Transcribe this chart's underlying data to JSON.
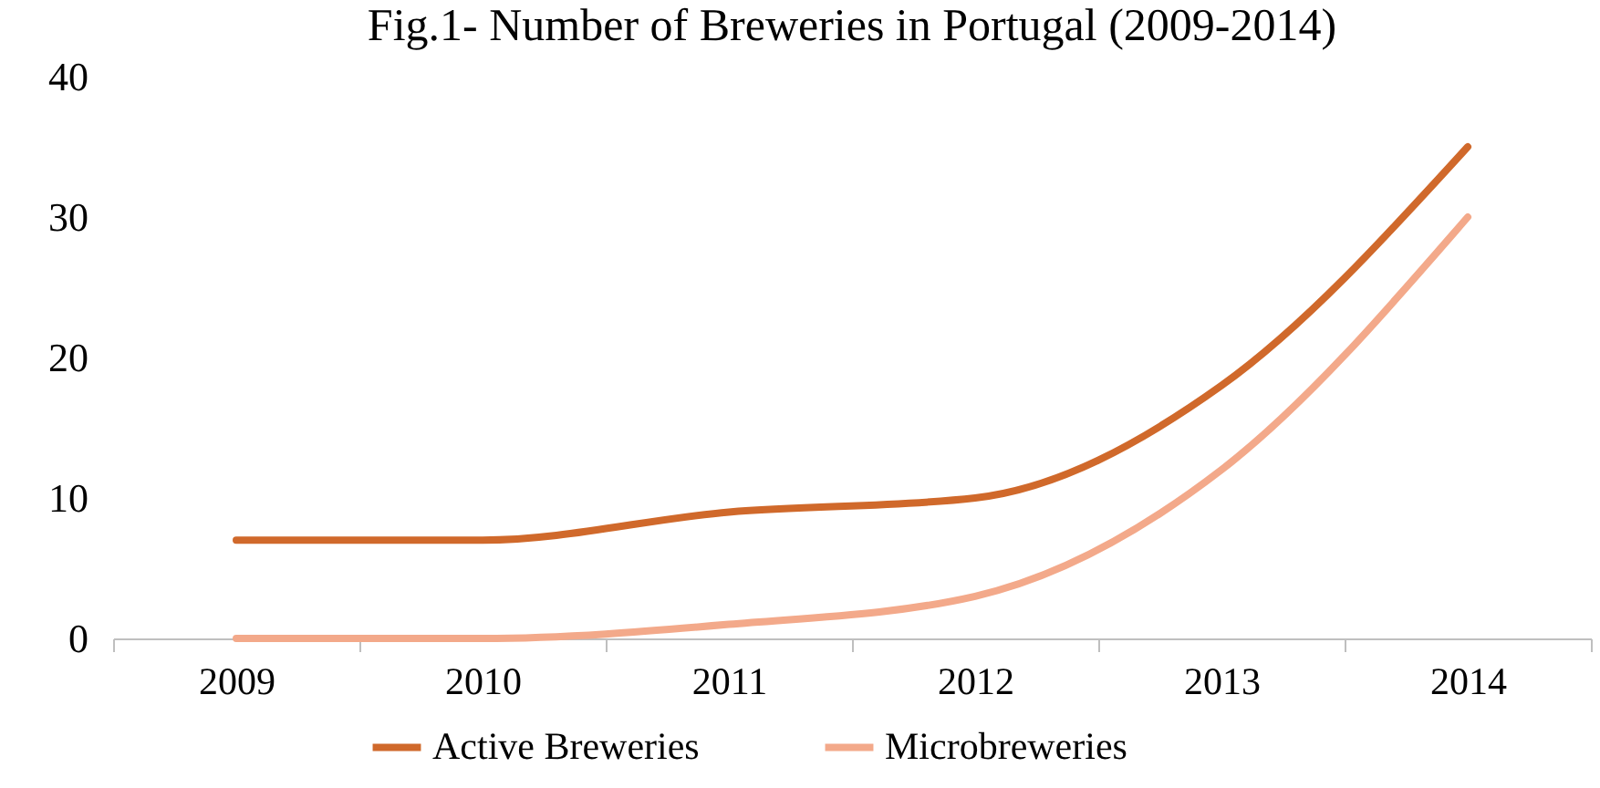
{
  "chart_data": {
    "type": "line",
    "title": "Fig.1- Number of Breweries in Portugal (2009-2014)",
    "categories": [
      "2009",
      "2010",
      "2011",
      "2012",
      "2013",
      "2014"
    ],
    "series": [
      {
        "name": "Active Breweries",
        "color": "#d0692b",
        "values": [
          7,
          7,
          9,
          10,
          18,
          35
        ]
      },
      {
        "name": "Microbreweries",
        "color": "#f3a98a",
        "values": [
          0,
          0,
          1,
          3,
          12,
          30
        ]
      }
    ],
    "ylim": [
      0,
      40
    ],
    "yticks": [
      0,
      10,
      20,
      30,
      40
    ],
    "grid": false,
    "legend": "bottom",
    "marker": "none",
    "line_style": "solid"
  }
}
